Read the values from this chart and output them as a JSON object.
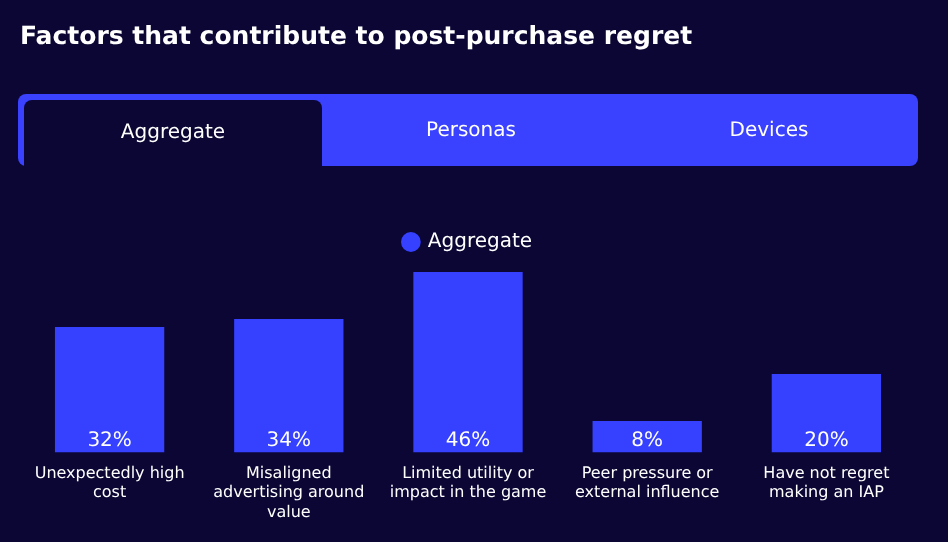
{
  "chart_data": {
    "type": "bar",
    "title": "Factors that contribute to post-purchase regret",
    "annotations": [
      "Aggregate",
      "Personas",
      "Devices"
    ],
    "categories": [
      "Unexpectedly high cost",
      "Misaligned advertising around value",
      "Limited utility or impact in the game",
      "Peer pressure or external influence",
      "Have not regret making an IAP"
    ],
    "series": [
      {
        "name": "Aggregate",
        "color": "#3641ff",
        "values": [
          32,
          34,
          46,
          8,
          20
        ],
        "value_labels": [
          "32%",
          "34%",
          "46%",
          "8%",
          "20%"
        ]
      }
    ],
    "legend": "top",
    "grid": false
  }
}
